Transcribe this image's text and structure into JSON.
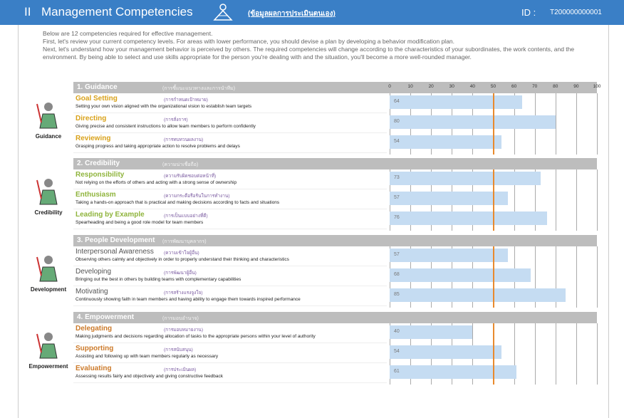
{
  "header": {
    "number": "II",
    "title": "Management Competencies",
    "subtitle": "(ข้อมูลผลการประเมินตนเอง)",
    "id_label": "ID :",
    "id_value": "T200000000001"
  },
  "intro": [
    "Below are 12 competencies required for effective management.",
    "First, let's review your current competency levels. For areas with lower performance, you should devise a plan by developing a behavior modification plan.",
    "Next, let's understand how your management behavior is perceived by others. The required competencies will change according to the characteristics of your subordinates, the work contents, and the environment. By being able to select and use skills appropriate for the person you're dealing with and the situation, you'll become a more well-rounded manager."
  ],
  "axis": {
    "lim": [
      0,
      100
    ],
    "ticks": [
      0,
      10,
      20,
      30,
      40,
      50,
      60,
      70,
      80,
      90,
      100
    ]
  },
  "benchmark": 50,
  "sections": [
    {
      "title": "1. Guidance",
      "subtitle": "(การชี้แนะแนวทางและการนำทีม)",
      "icon_label": "Guidance",
      "color": "#d9a21b",
      "items": [
        {
          "name": "Goal Setting",
          "subtitle": "(การกำหนดเป้าหมาย)",
          "description": "Setting your own vision aligned with the organizational vision to establish team targets",
          "value": 64
        },
        {
          "name": "Directing",
          "subtitle": "(การสั่งการ)",
          "description": "Giving precise and consistent instructions to allow team members to perform confidently",
          "value": 80
        },
        {
          "name": "Reviewing",
          "subtitle": "(การทบทวนผลงาน)",
          "description": "Grasping progress and taking appropriate action to resolve problems and delays",
          "value": 54
        }
      ]
    },
    {
      "title": "2. Credibility",
      "subtitle": "(ความน่าเชื่อถือ)",
      "icon_label": "Credibility",
      "color": "#8fb43c",
      "items": [
        {
          "name": "Responsibility",
          "subtitle": "(ความรับผิดชอบต่อหน้าที่)",
          "description": "Not relying on the efforts of others and acting with a strong sense of ownership",
          "value": 73
        },
        {
          "name": "Enthusiasm",
          "subtitle": "(ความกระตือรือร้นในการทำงาน)",
          "description": "Taking a hands-on approach that is practical and making decisions according to facts and situations",
          "value": 57
        },
        {
          "name": "Leading by Example",
          "subtitle": "(การเป็นแบบอย่างที่ดี)",
          "description": "Spearheading and being a good role model for team members",
          "value": 76
        }
      ]
    },
    {
      "title": "3. People Development",
      "subtitle": "(การพัฒนาบุคลากร)",
      "icon_label": "Development",
      "color": "#555555",
      "items": [
        {
          "name": "Interpersonal Awareness",
          "subtitle": "(ความเข้าใจผู้อื่น)",
          "description": "Observing others calmly and objectively in order to properly understand their thinking and characteristics",
          "value": 57
        },
        {
          "name": "Developing",
          "subtitle": "(การพัฒนาผู้อื่น)",
          "description": "Bringing out the best in others by building teams with complementary capabilities",
          "value": 68
        },
        {
          "name": "Motivating",
          "subtitle": "(การสร้างแรงจูงใจ)",
          "description": "Continuously showing faith in team members and having ability to engage them towards inspired performance",
          "value": 85
        }
      ]
    },
    {
      "title": "4. Empowerment",
      "subtitle": "(การมอบอำนาจ)",
      "icon_label": "Empowerment",
      "color": "#cc7a2a",
      "items": [
        {
          "name": "Delegating",
          "subtitle": "(การมอบหมายงาน)",
          "description": "Making judgments and decisions regarding allocation of tasks to the appropriate persons within your level of authority",
          "value": 40
        },
        {
          "name": "Supporting",
          "subtitle": "(การสนับสนุน)",
          "description": "Assisting and following up with team members regularly as necessary",
          "value": 54
        },
        {
          "name": "Evaluating",
          "subtitle": "(การประเมินผล)",
          "description": "Assessing results fairly and objectively and giving constructive feedback",
          "value": 61
        }
      ]
    }
  ]
}
